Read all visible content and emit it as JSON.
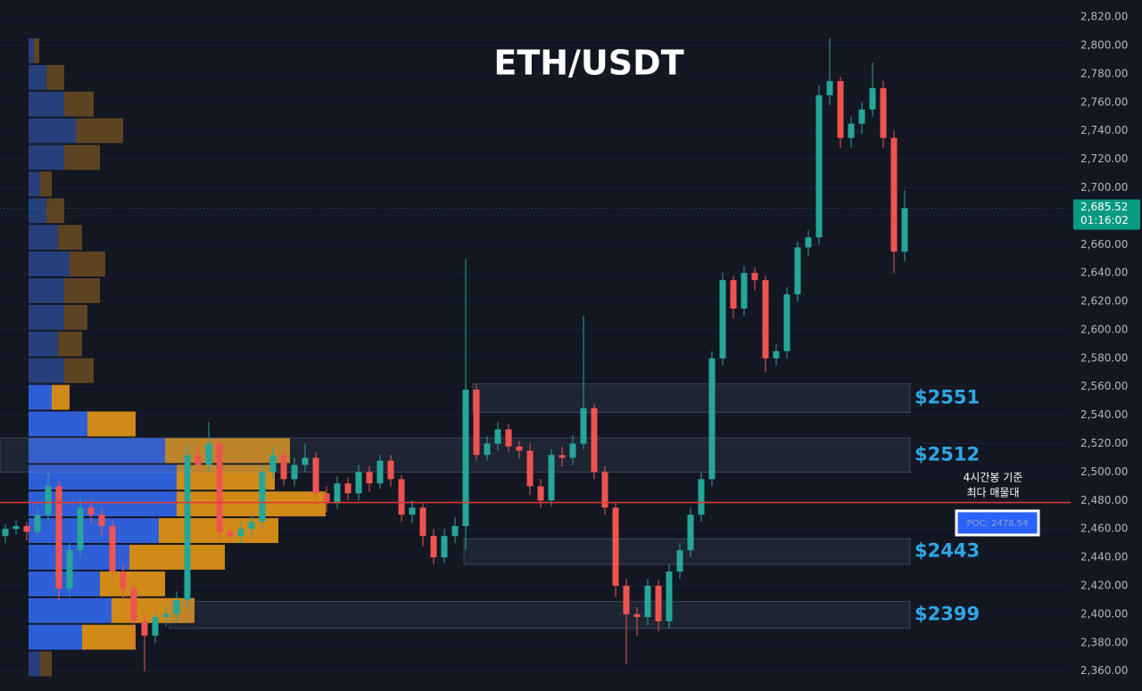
{
  "chart_data": {
    "type": "candlestick",
    "title": "ETH/USDT",
    "ylim": [
      2346,
      2832
    ],
    "yticks": [
      {
        "value": 2360,
        "label": "2,360.00"
      },
      {
        "value": 2380,
        "label": "2,380.00"
      },
      {
        "value": 2400,
        "label": "2,400.00"
      },
      {
        "value": 2420,
        "label": "2,420.00"
      },
      {
        "value": 2440,
        "label": "2,440.00"
      },
      {
        "value": 2460,
        "label": "2,460.00"
      },
      {
        "value": 2480,
        "label": "2,480.00"
      },
      {
        "value": 2500,
        "label": "2,500.00"
      },
      {
        "value": 2520,
        "label": "2,520.00"
      },
      {
        "value": 2540,
        "label": "2,540.00"
      },
      {
        "value": 2560,
        "label": "2,560.00"
      },
      {
        "value": 2580,
        "label": "2,580.00"
      },
      {
        "value": 2600,
        "label": "2,600.00"
      },
      {
        "value": 2620,
        "label": "2,620.00"
      },
      {
        "value": 2640,
        "label": "2,640.00"
      },
      {
        "value": 2660,
        "label": "2,660.00"
      },
      {
        "value": 2680,
        "label": "2,680.00"
      },
      {
        "value": 2700,
        "label": "2,700.00"
      },
      {
        "value": 2720,
        "label": "2,720.00"
      },
      {
        "value": 2740,
        "label": "2,740.00"
      },
      {
        "value": 2760,
        "label": "2,760.00"
      },
      {
        "value": 2780,
        "label": "2,780.00"
      },
      {
        "value": 2800,
        "label": "2,800.00"
      },
      {
        "value": 2820,
        "label": "2,820.00"
      }
    ],
    "grid": true,
    "up_color": "#26a69a",
    "down_color": "#ef5350",
    "open": [
      2455,
      2460,
      2462,
      2458,
      2470,
      2490,
      2418,
      2445,
      2475,
      2470,
      2462,
      2430,
      2418,
      2395,
      2385,
      2398,
      2400,
      2410,
      2512,
      2505,
      2520,
      2458,
      2455,
      2460,
      2465,
      2500,
      2512,
      2495,
      2505,
      2510,
      2485,
      2478,
      2492,
      2485,
      2500,
      2492,
      2508,
      2495,
      2470,
      2475,
      2455,
      2440,
      2455,
      2462,
      2558,
      2512,
      2520,
      2530,
      2518,
      2515,
      2490,
      2480,
      2512,
      2510,
      2520,
      2545,
      2500,
      2475,
      2420,
      2400,
      2398,
      2420,
      2395,
      2430,
      2445,
      2470,
      2495,
      2580,
      2635,
      2615,
      2640,
      2635,
      2580,
      2585,
      2625,
      2658,
      2665,
      2765,
      2775,
      2735,
      2745,
      2755,
      2770,
      2735,
      2655
    ],
    "high": [
      2463,
      2466,
      2465,
      2474,
      2500,
      2494,
      2450,
      2482,
      2480,
      2474,
      2466,
      2435,
      2422,
      2400,
      2402,
      2405,
      2416,
      2520,
      2518,
      2535,
      2524,
      2463,
      2465,
      2470,
      2505,
      2518,
      2516,
      2510,
      2520,
      2514,
      2490,
      2497,
      2496,
      2505,
      2504,
      2512,
      2512,
      2498,
      2480,
      2478,
      2460,
      2460,
      2468,
      2650,
      2562,
      2525,
      2535,
      2534,
      2522,
      2520,
      2495,
      2516,
      2518,
      2526,
      2610,
      2548,
      2504,
      2478,
      2425,
      2405,
      2425,
      2424,
      2435,
      2450,
      2475,
      2500,
      2585,
      2640,
      2638,
      2645,
      2644,
      2638,
      2590,
      2630,
      2662,
      2670,
      2772,
      2805,
      2778,
      2750,
      2760,
      2788,
      2775,
      2740,
      2698
    ],
    "low": [
      2450,
      2456,
      2452,
      2455,
      2466,
      2410,
      2412,
      2440,
      2464,
      2455,
      2424,
      2410,
      2375,
      2360,
      2380,
      2392,
      2395,
      2405,
      2498,
      2500,
      2452,
      2450,
      2450,
      2455,
      2460,
      2495,
      2490,
      2490,
      2500,
      2480,
      2472,
      2474,
      2480,
      2480,
      2486,
      2488,
      2490,
      2465,
      2464,
      2448,
      2435,
      2436,
      2450,
      2445,
      2508,
      2508,
      2515,
      2514,
      2510,
      2484,
      2475,
      2476,
      2504,
      2505,
      2516,
      2495,
      2470,
      2412,
      2365,
      2385,
      2392,
      2388,
      2390,
      2425,
      2440,
      2465,
      2490,
      2575,
      2608,
      2610,
      2628,
      2570,
      2575,
      2580,
      2620,
      2652,
      2660,
      2758,
      2728,
      2728,
      2738,
      2750,
      2728,
      2640,
      2648
    ],
    "close": [
      2460,
      2462,
      2458,
      2470,
      2490,
      2418,
      2445,
      2475,
      2470,
      2462,
      2430,
      2418,
      2395,
      2385,
      2398,
      2400,
      2410,
      2512,
      2505,
      2520,
      2458,
      2455,
      2460,
      2465,
      2500,
      2512,
      2495,
      2505,
      2510,
      2485,
      2478,
      2492,
      2485,
      2500,
      2492,
      2508,
      2495,
      2470,
      2475,
      2455,
      2440,
      2455,
      2462,
      2558,
      2512,
      2520,
      2530,
      2518,
      2515,
      2490,
      2480,
      2512,
      2510,
      2520,
      2545,
      2500,
      2475,
      2420,
      2400,
      2398,
      2420,
      2395,
      2430,
      2445,
      2470,
      2495,
      2580,
      2635,
      2615,
      2640,
      2635,
      2580,
      2585,
      2625,
      2658,
      2665,
      2765,
      2775,
      2735,
      2745,
      2755,
      2770,
      2735,
      2655,
      2685.52
    ],
    "volume_profile": {
      "bins": [
        2355.7,
        2374.45,
        2393.2,
        2411.95,
        2430.7,
        2449.45,
        2468.2,
        2486.95,
        2505.7,
        2524.45,
        2543.2,
        2561.95,
        2580.7,
        2599.45,
        2618.2,
        2636.95,
        2655.7,
        2674.45,
        2693.2,
        2711.95,
        2730.7,
        2749.45,
        2768.2,
        2786.95,
        2805.7
      ],
      "buy": [
        13,
        60,
        93,
        80,
        113,
        146,
        166,
        166,
        153,
        66,
        26,
        40,
        33,
        40,
        40,
        46,
        33,
        20,
        13,
        40,
        53,
        40,
        20,
        6
      ],
      "sell": [
        13,
        60,
        93,
        73,
        107,
        134,
        167,
        110,
        140,
        54,
        20,
        33,
        27,
        26,
        40,
        40,
        27,
        20,
        13,
        40,
        53,
        33,
        20,
        6
      ],
      "value_area": [
        2374.45,
        2561.95
      ]
    },
    "zones": [
      {
        "label": "$2551",
        "low": 2542,
        "high": 2562
      },
      {
        "label": "$2512",
        "low": 2500,
        "high": 2524
      },
      {
        "label": "$2443",
        "low": 2435,
        "high": 2453
      },
      {
        "label": "$2399",
        "low": 2390,
        "high": 2409
      }
    ],
    "poc": {
      "value": 2478.54,
      "label": "POC: 2478.54"
    },
    "annotation": [
      "4시간봉 기준",
      "최다 매물대"
    ],
    "last_price": {
      "value": 2685.52,
      "label": "2,685.52"
    },
    "countdown": "01:16:02"
  }
}
